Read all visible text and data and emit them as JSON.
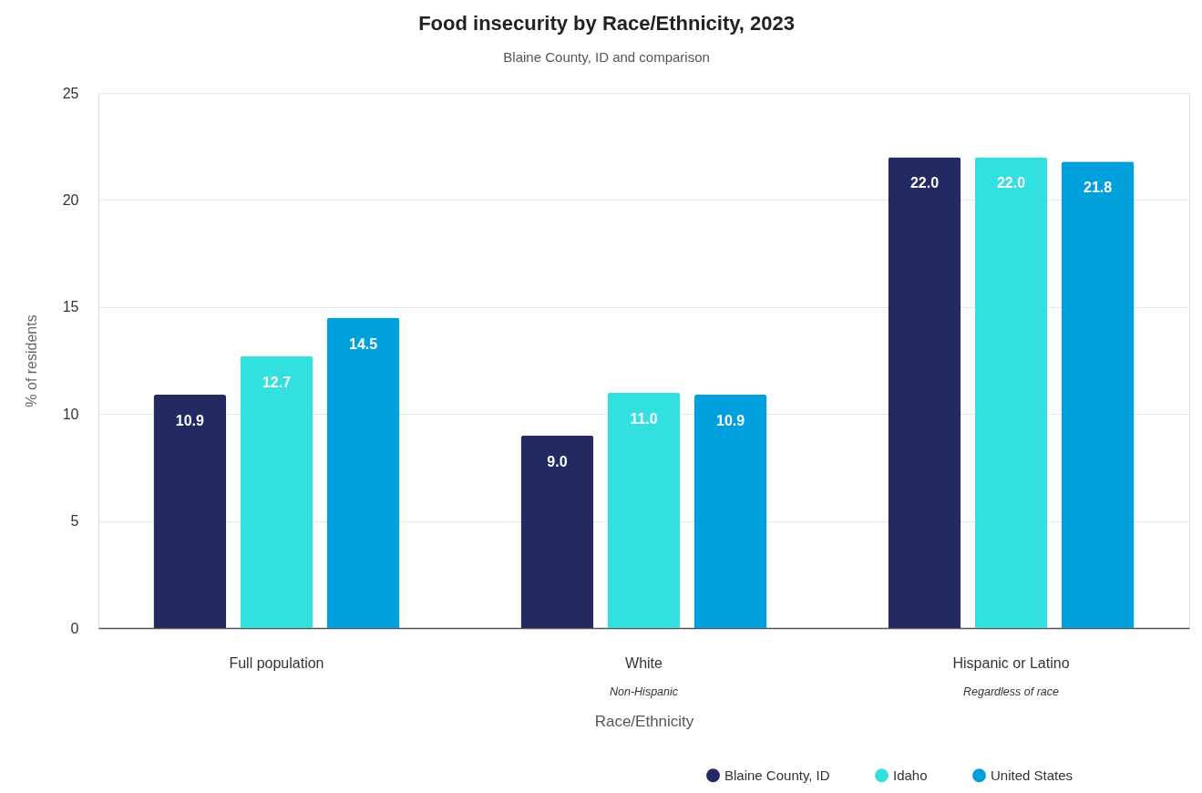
{
  "chart_data": {
    "type": "bar",
    "title": "Food insecurity by Race/Ethnicity, 2023",
    "subtitle": "Blaine County, ID and comparison",
    "xlabel": "Race/Ethnicity",
    "ylabel": "% of residents",
    "categories": [
      "Full population",
      "White\nNon-Hispanic",
      "Hispanic or Latino\nRegardless of race"
    ],
    "series": [
      {
        "name": "Blaine County, ID",
        "color": "#232a62",
        "values": [
          10.9,
          9.0,
          22.0
        ],
        "value_labels": [
          "10.9",
          "9.0",
          "22.0"
        ]
      },
      {
        "name": "Idaho",
        "color": "#33e0e0",
        "values": [
          12.7,
          11.0,
          22.0
        ],
        "value_labels": [
          "12.7",
          "11.0",
          "22.0"
        ]
      },
      {
        "name": "United States",
        "color": "#00a0dc",
        "values": [
          14.5,
          10.9,
          21.8
        ],
        "value_labels": [
          "14.5",
          "10.9",
          "21.8"
        ]
      }
    ],
    "ylim": [
      0,
      25
    ],
    "yticks": [
      0,
      5,
      10,
      15,
      20,
      25
    ],
    "grid": "y",
    "legend": "bottom right"
  }
}
